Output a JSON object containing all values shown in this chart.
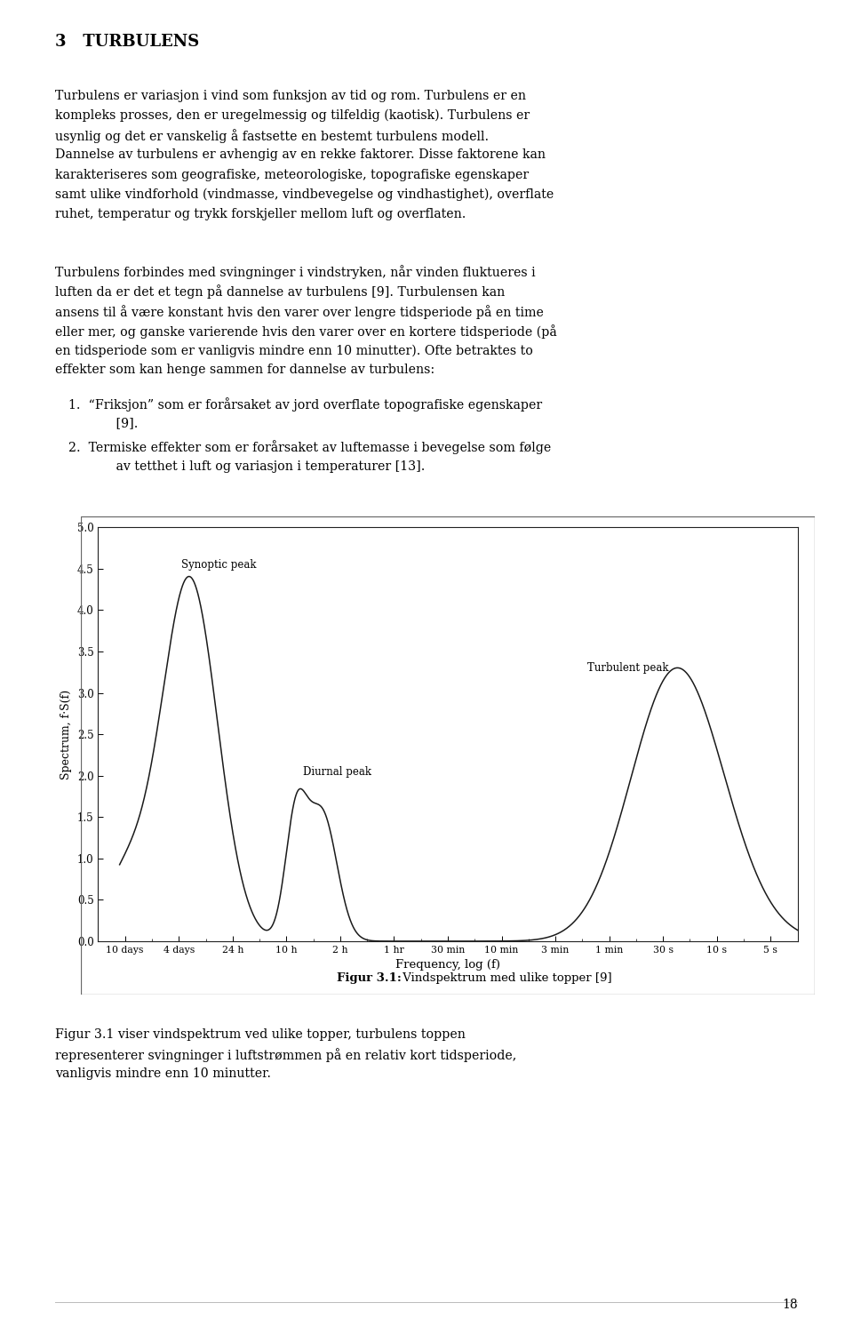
{
  "title_bold": "Figur 3.1:",
  "title_rest": " Vindspektrum med ulike topper [9]",
  "xlabel": "Frequency, log (f)",
  "ylabel": "Spectrum, f·S(f)",
  "ylim": [
    0.0,
    5.0
  ],
  "yticks": [
    0.0,
    0.5,
    1.0,
    1.5,
    2.0,
    2.5,
    3.0,
    3.5,
    4.0,
    4.5,
    5.0
  ],
  "xtick_labels": [
    "10 days",
    "4 days",
    "24 h",
    "10 h",
    "2 h",
    "1 hr",
    "30 min",
    "10 min",
    "3 min",
    "1 min",
    "30 s",
    "10 s",
    "5 s"
  ],
  "synoptic_label": "Synoptic peak",
  "diurnal_label": "Diurnal peak",
  "turbulent_label": "Turbulent peak",
  "line_color": "#1a1a1a",
  "page_number": "18",
  "heading": "3   TURBULENS",
  "para1_lines": [
    "Turbulens er variasjon i vind som funksjon av tid og rom. Turbulens er en",
    "kompleks prosses, den er uregelmessig og tilfeldig (kaotisk). Turbulens er",
    "usynlig og det er vanskelig å fastsette en bestemt turbulens modell.",
    "Dannelse av turbulens er avhengig av en rekke faktorer. Disse faktorene kan",
    "karakteriseres som geografiske, meteorologiske, topografiske egenskaper",
    "samt ulike vindforhold (vindmasse, vindbevegelse og vindhastighet), overflate",
    "ruhet, temperatur og trykk forskjeller mellom luft og overflaten."
  ],
  "para2_lines": [
    "Turbulens forbindes med svingninger i vindstryken, når vinden fluktueres i",
    "luften da er det et tegn på dannelse av turbulens [9]. Turbulensen kan",
    "ansens til å være konstant hvis den varer over lengre tidsperiode på en time",
    "eller mer, og ganske varierende hvis den varer over en kortere tidsperiode (på",
    "en tidsperiode som er vanligvis mindre enn 10 minutter). Ofte betraktes to",
    "effekter som kan henge sammen for dannelse av turbulens:"
  ],
  "list1_line1": "1.  “Friksjon” som er forårsaket av jord overflate topografiske egenskaper",
  "list1_line2": "     [9].",
  "list2_line1": "2.  Termiske effekter som er forårsaket av luftemasse i bevegelse som følge",
  "list2_line2": "     av tetthet i luft og variasjon i temperaturer [13].",
  "bottom_lines": [
    "Figur 3.1 viser vindspektrum ved ulike topper, turbulens toppen",
    "representerer svingninger i luftstrømmen på en relativ kort tidsperiode,",
    "vanligvis mindre enn 10 minutter."
  ]
}
